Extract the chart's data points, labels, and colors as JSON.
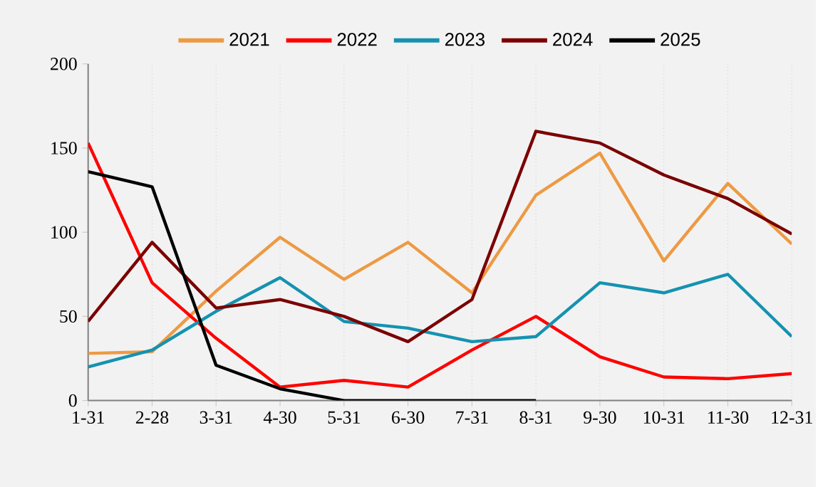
{
  "chart_data": {
    "type": "line",
    "categories": [
      "1-31",
      "2-28",
      "3-31",
      "4-30",
      "5-31",
      "6-30",
      "7-31",
      "8-31",
      "9-30",
      "10-31",
      "11-30",
      "12-31"
    ],
    "series": [
      {
        "name": "2021",
        "color": "#ed9a44",
        "values": [
          28,
          29,
          65,
          97,
          72,
          94,
          64,
          122,
          147,
          83,
          129,
          93
        ]
      },
      {
        "name": "2022",
        "color": "#ff0000",
        "values": [
          153,
          70,
          37,
          8,
          12,
          8,
          30,
          50,
          26,
          14,
          13,
          16
        ]
      },
      {
        "name": "2023",
        "color": "#1592b0",
        "values": [
          20,
          30,
          53,
          73,
          47,
          43,
          35,
          38,
          70,
          64,
          75,
          38
        ]
      },
      {
        "name": "2024",
        "color": "#7b0000",
        "values": [
          47,
          94,
          55,
          60,
          50,
          35,
          60,
          160,
          153,
          134,
          120,
          99
        ]
      },
      {
        "name": "2025",
        "color": "#000000",
        "values": [
          136,
          127,
          21,
          7,
          0,
          0,
          0,
          0,
          null,
          null,
          null,
          null
        ]
      }
    ],
    "ylim": [
      0,
      200
    ],
    "yticks": [
      0,
      50,
      100,
      150,
      200
    ],
    "grid": "x",
    "legend": "top"
  }
}
